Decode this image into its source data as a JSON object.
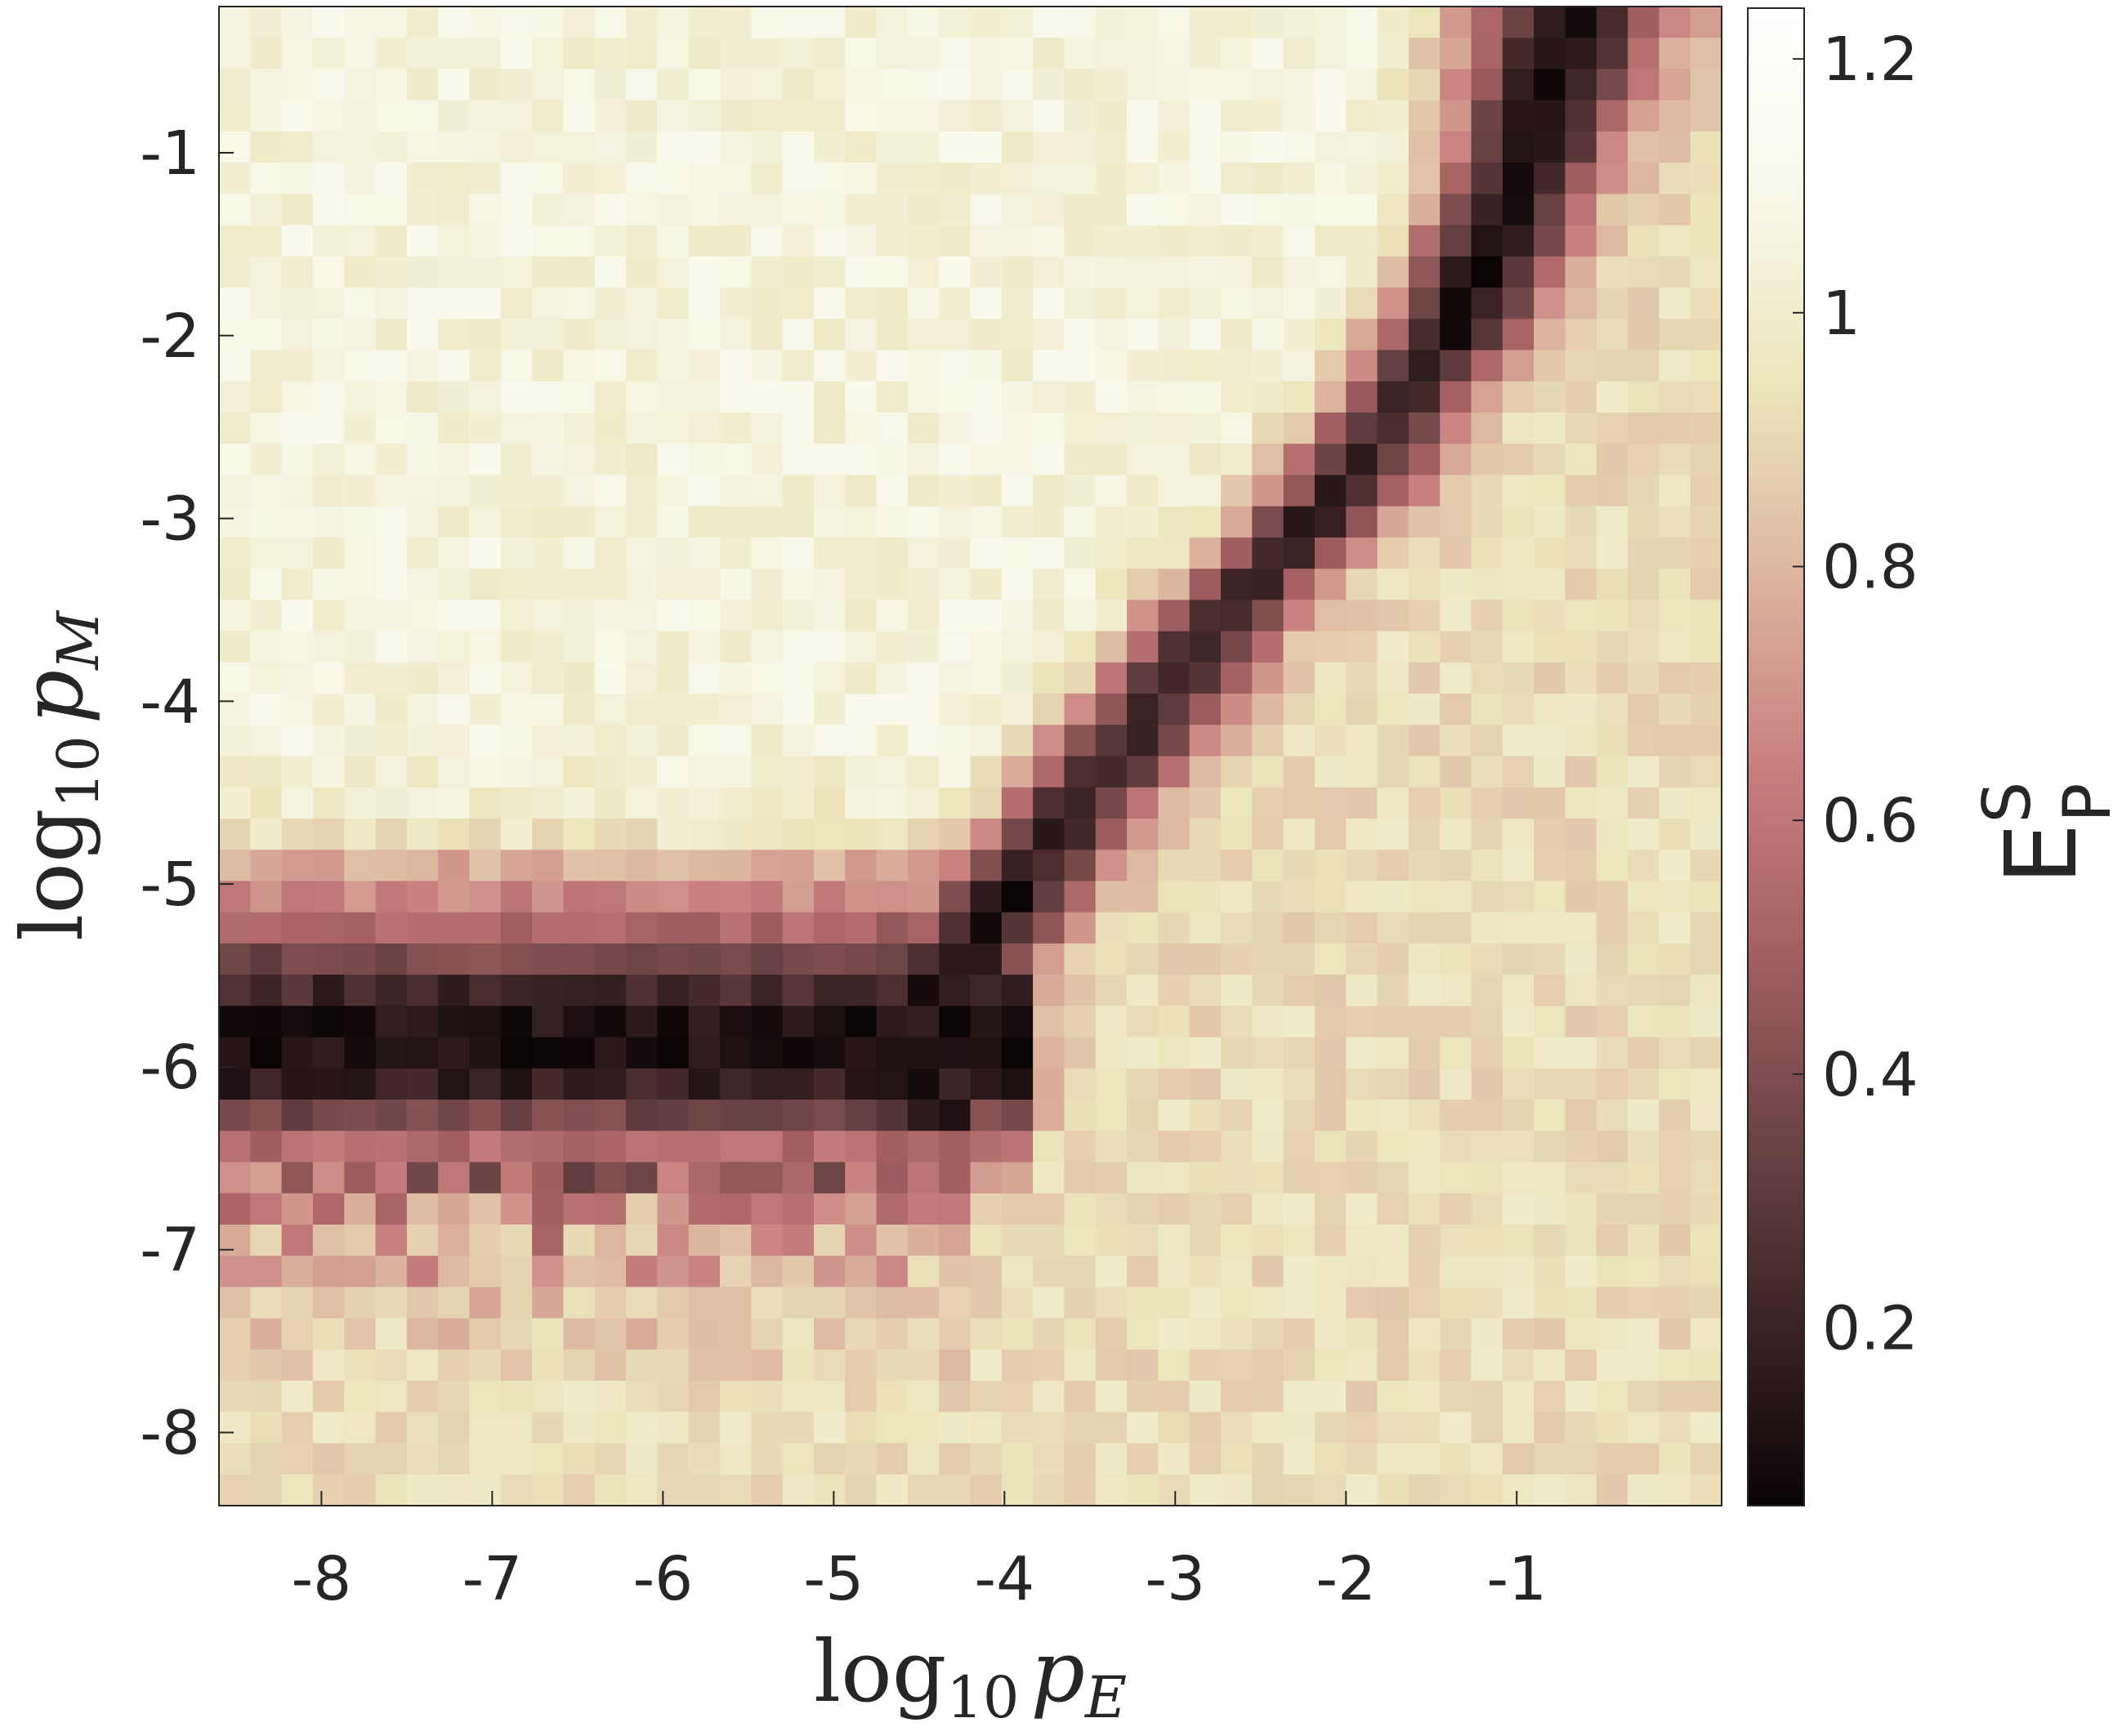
{
  "chart_data": {
    "type": "heatmap",
    "title": "",
    "xlabel": {
      "base": "log",
      "sub": "10",
      "var": "p",
      "varsub": "E"
    },
    "ylabel": {
      "base": "log",
      "sub": "10",
      "var": "p",
      "varsub": "M"
    },
    "x_range": [
      -8.6,
      0.2
    ],
    "y_range": [
      -8.4,
      -0.2
    ],
    "x_ticks": [
      -8,
      -7,
      -6,
      -5,
      -4,
      -3,
      -2,
      -1
    ],
    "y_ticks": [
      -8,
      -7,
      -6,
      -5,
      -4,
      -3,
      -2,
      -1
    ],
    "x_tick_labels": [
      "-8",
      "-7",
      "-6",
      "-5",
      "-4",
      "-3",
      "-2",
      "-1"
    ],
    "y_tick_labels": [
      "-8",
      "-7",
      "-6",
      "-5",
      "-4",
      "-3",
      "-2",
      "-1"
    ],
    "grid": {
      "cols": 48,
      "rows": 48
    },
    "colorbar": {
      "label": "E",
      "label_super": "S",
      "label_sub": "P",
      "range": [
        0.06,
        1.24
      ],
      "ticks": [
        0.2,
        0.4,
        0.6,
        0.8,
        1.0,
        1.2
      ],
      "tick_labels": [
        "0.2",
        "0.4",
        "0.6",
        "0.8",
        "1",
        "1.2"
      ],
      "colormap": [
        "#0a0405",
        "#3c2426",
        "#6e4547",
        "#a66162",
        "#c98280",
        "#ddb7a0",
        "#ece6bc",
        "#f8f8e9",
        "#ffffff"
      ]
    },
    "structure": {
      "background_value_upper_left": 1.05,
      "background_value_lower_right": 0.92,
      "valley_min_value": 0.08,
      "horizontal_band_center_log_pM": -5.9,
      "vertical_band_path_log_pE_log_pM": [
        [
          -4.4,
          -5.6
        ],
        [
          -3.6,
          -4.6
        ],
        [
          -2.8,
          -3.6
        ],
        [
          -2.0,
          -2.8
        ],
        [
          -1.4,
          -2.0
        ],
        [
          -1.0,
          -1.2
        ],
        [
          -0.7,
          -0.3
        ]
      ],
      "lower_region_log_pM_below": -6.6
    }
  }
}
